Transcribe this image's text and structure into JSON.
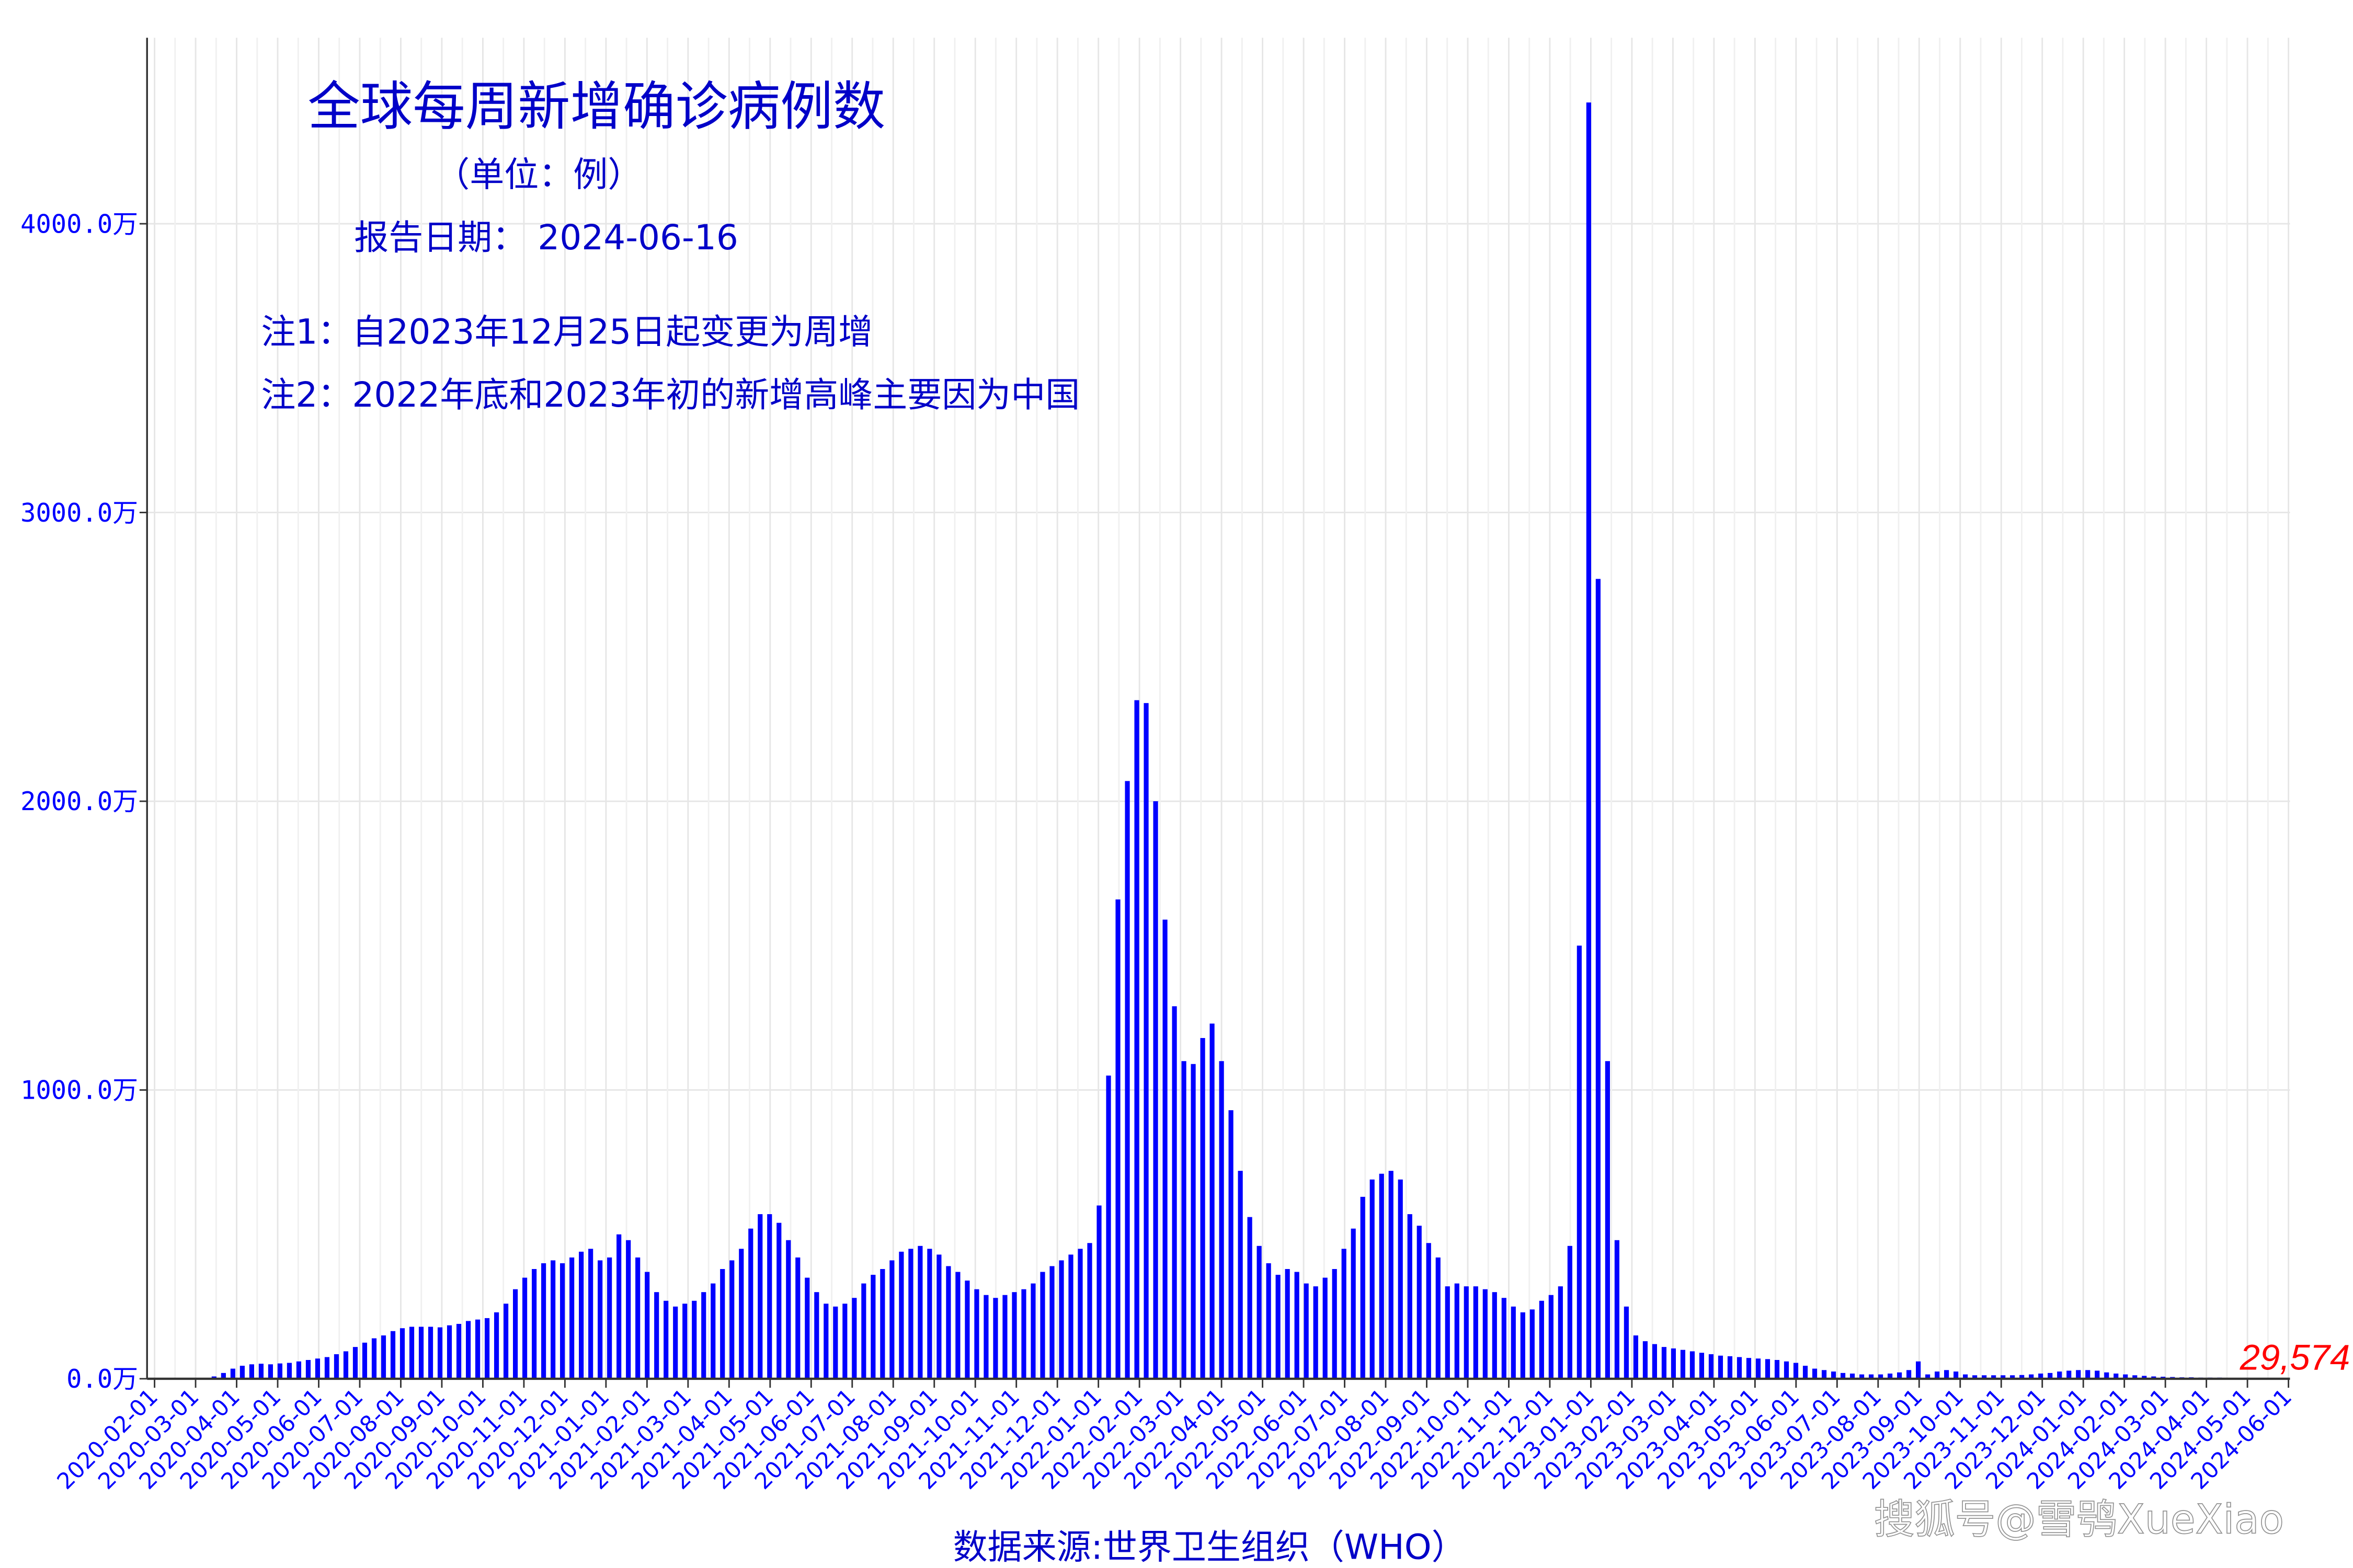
{
  "colors": {
    "bar": "#0000ff",
    "text": "#0000c8",
    "last_label": "#ff0000",
    "grid": "#e6e6e6",
    "axis": "#333333"
  },
  "annotations": {
    "unit": "（单位：例）",
    "report_date": "报告日期： 2024-06-16",
    "note1": "注1：自2023年12月25日起变更为周增",
    "note2": "注2：2022年底和2023年初的新增高峰主要因为中国",
    "source": "数据来源:世界卫生组织（WHO）",
    "watermark": "搜狐号@雪鸮XueXiao"
  },
  "chart_data": {
    "type": "bar",
    "title": "全球每周新增确诊病例数",
    "xlabel": "数据来源:世界卫生组织（WHO）",
    "ylabel": "",
    "unit": "万",
    "ylim": [
      0,
      4550
    ],
    "yticks": [
      0,
      1000,
      2000,
      3000,
      4000
    ],
    "ytick_labels": [
      "0.0万",
      "1000.0万",
      "2000.0万",
      "3000.0万",
      "4000.0万"
    ],
    "grid": true,
    "xtick_labels": [
      "2020-02-01",
      "2020-03-01",
      "2020-04-01",
      "2020-05-01",
      "2020-06-01",
      "2020-07-01",
      "2020-08-01",
      "2020-09-01",
      "2020-10-01",
      "2020-11-01",
      "2020-12-01",
      "2021-01-01",
      "2021-02-01",
      "2021-03-01",
      "2021-04-01",
      "2021-05-01",
      "2021-06-01",
      "2021-07-01",
      "2021-08-01",
      "2021-09-01",
      "2021-10-01",
      "2021-11-01",
      "2021-12-01",
      "2022-01-01",
      "2022-02-01",
      "2022-03-01",
      "2022-04-01",
      "2022-05-01",
      "2022-06-01",
      "2022-07-01",
      "2022-08-01",
      "2022-09-01",
      "2022-10-01",
      "2022-11-01",
      "2022-12-01",
      "2023-01-01",
      "2023-02-01",
      "2023-03-01",
      "2023-04-01",
      "2023-05-01",
      "2023-06-01",
      "2023-07-01",
      "2023-08-01",
      "2023-09-01",
      "2023-10-01",
      "2023-11-01",
      "2023-12-01",
      "2024-01-01",
      "2024-02-01",
      "2024-03-01",
      "2024-04-01",
      "2024-05-01",
      "2024-06-01"
    ],
    "last_value_label": "29,574",
    "values": [
      0.3,
      0.2,
      0.1,
      0.3,
      1,
      3,
      8,
      20,
      35,
      45,
      50,
      52,
      50,
      53,
      55,
      60,
      65,
      70,
      75,
      85,
      95,
      110,
      125,
      140,
      150,
      165,
      175,
      180,
      180,
      180,
      178,
      185,
      190,
      200,
      205,
      210,
      230,
      260,
      310,
      350,
      380,
      400,
      410,
      400,
      420,
      440,
      450,
      410,
      420,
      500,
      480,
      420,
      370,
      300,
      270,
      250,
      260,
      270,
      300,
      330,
      380,
      410,
      450,
      520,
      570,
      570,
      540,
      480,
      420,
      350,
      300,
      260,
      250,
      260,
      280,
      330,
      360,
      380,
      410,
      440,
      450,
      460,
      450,
      430,
      390,
      370,
      340,
      310,
      290,
      280,
      290,
      300,
      310,
      330,
      370,
      390,
      410,
      430,
      450,
      470,
      600,
      1050,
      1660,
      2070,
      2350,
      2340,
      2000,
      1590,
      1290,
      1100,
      1090,
      1180,
      1230,
      1100,
      930,
      720,
      560,
      460,
      400,
      360,
      380,
      370,
      330,
      320,
      350,
      380,
      450,
      520,
      630,
      690,
      710,
      720,
      690,
      570,
      530,
      470,
      420,
      320,
      330,
      320,
      320,
      310,
      300,
      280,
      250,
      230,
      240,
      270,
      290,
      320,
      460,
      1500,
      4420,
      2770,
      1100,
      480,
      250,
      150,
      130,
      120,
      110,
      105,
      100,
      95,
      90,
      85,
      80,
      78,
      75,
      72,
      70,
      68,
      65,
      60,
      55,
      45,
      35,
      30,
      25,
      20,
      18,
      15,
      15,
      15,
      18,
      22,
      30,
      60,
      15,
      25,
      30,
      25,
      15,
      12,
      12,
      12,
      12,
      12,
      13,
      15,
      18,
      20,
      25,
      28,
      30,
      30,
      28,
      22,
      18,
      15,
      12,
      10,
      8,
      7,
      6,
      5,
      5,
      4,
      4,
      4,
      3,
      3,
      3,
      3,
      3,
      3,
      2.96
    ]
  }
}
